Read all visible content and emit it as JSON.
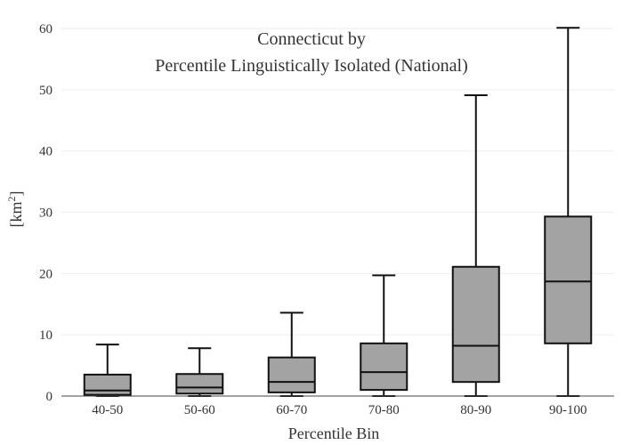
{
  "chart_data": {
    "type": "box",
    "title": "Connecticut  by",
    "subtitle": "Percentile Linguistically Isolated (National)",
    "xlabel": "Percentile Bin",
    "ylabel": "[km",
    "ylabel_superscript": "2",
    "ylabel_suffix": "]",
    "ylim": [
      0,
      60
    ],
    "yticks": [
      0,
      10,
      20,
      30,
      40,
      50,
      60
    ],
    "grid": true,
    "colors": {
      "box_fill": "#a3a3a3",
      "stroke": "#111111"
    },
    "categories": [
      "40-50",
      "50-60",
      "60-70",
      "70-80",
      "80-90",
      "90-100"
    ],
    "boxes": [
      {
        "category": "40-50",
        "min": 0,
        "q1": 0.2,
        "median": 0.9,
        "q3": 3.5,
        "max": 8.4
      },
      {
        "category": "50-60",
        "min": 0,
        "q1": 0.4,
        "median": 1.4,
        "q3": 3.6,
        "max": 7.8
      },
      {
        "category": "60-70",
        "min": 0,
        "q1": 0.6,
        "median": 2.3,
        "q3": 6.3,
        "max": 13.6
      },
      {
        "category": "70-80",
        "min": 0,
        "q1": 1.0,
        "median": 3.9,
        "q3": 8.6,
        "max": 19.7
      },
      {
        "category": "80-90",
        "min": 0,
        "q1": 2.3,
        "median": 8.2,
        "q3": 21.1,
        "max": 49.1
      },
      {
        "category": "90-100",
        "min": 0,
        "q1": 8.6,
        "median": 18.7,
        "q3": 29.3,
        "max": 60.1
      }
    ]
  }
}
